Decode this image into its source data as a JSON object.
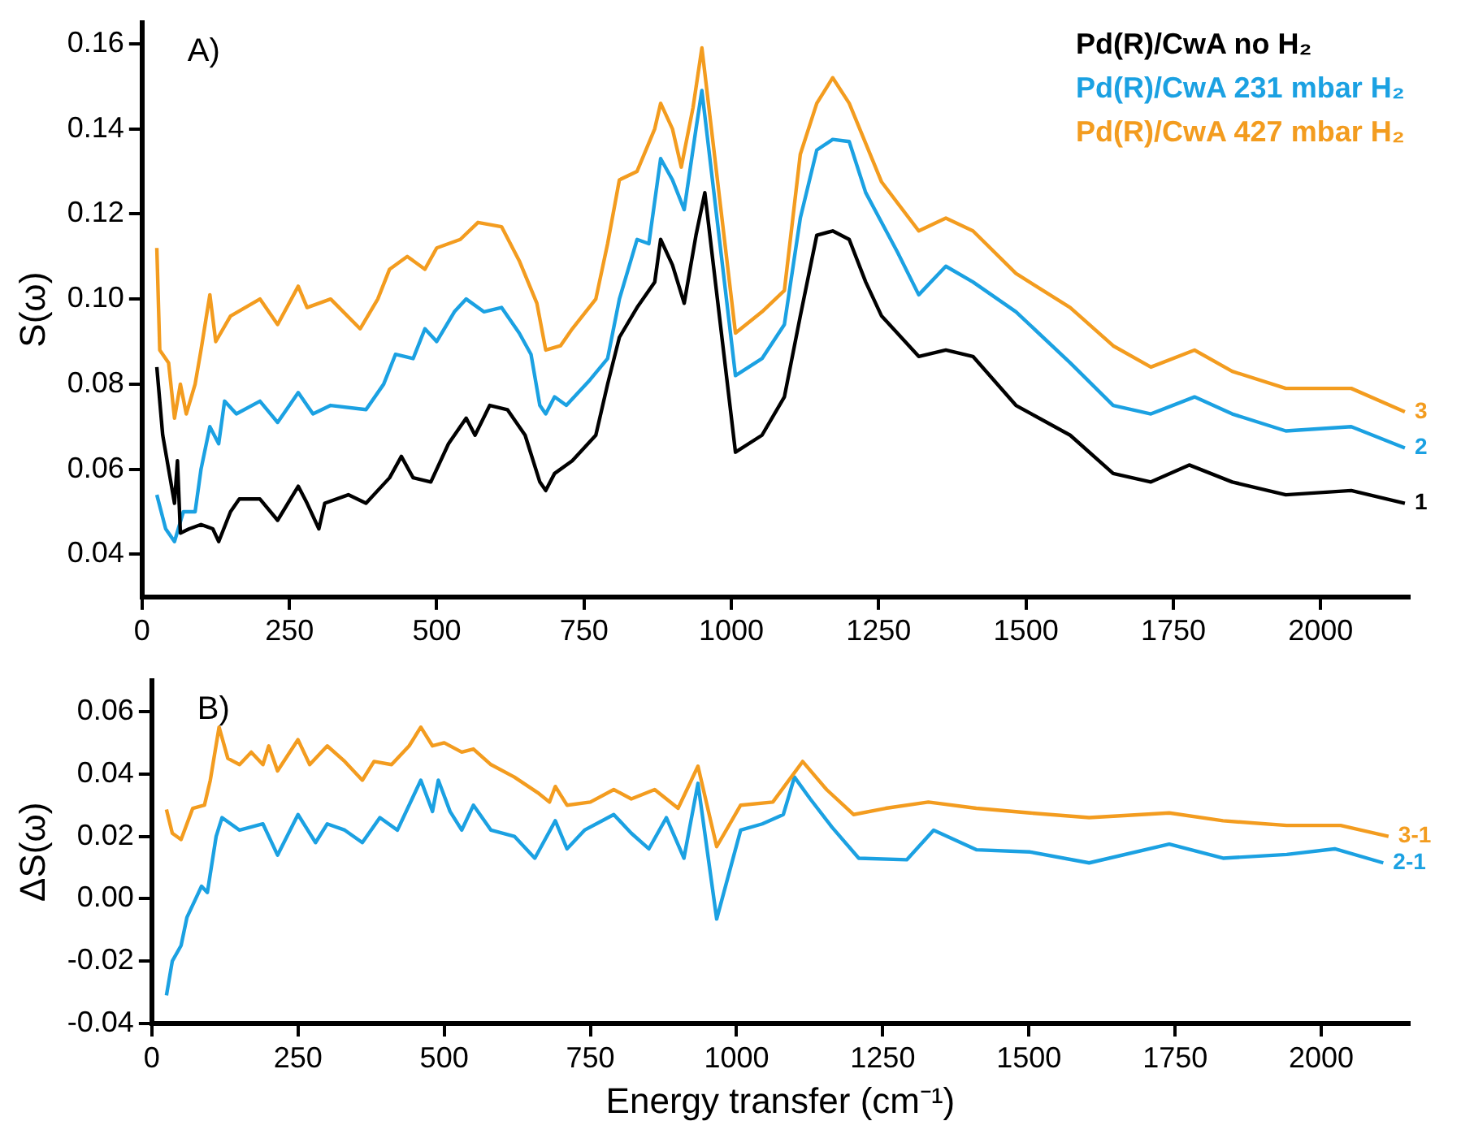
{
  "chart_data": [
    {
      "type": "line",
      "ylabel": "S(ω)",
      "xlim": [
        0,
        2150
      ],
      "ylim": [
        0.03,
        0.165
      ],
      "xticks": [
        0,
        250,
        500,
        750,
        1000,
        1250,
        1500,
        1750,
        2000
      ],
      "yticks": [
        0.04,
        0.06,
        0.08,
        {
          "value": 0.1,
          "label": "0.10"
        },
        0.12,
        0.14,
        0.16
      ],
      "grid": false,
      "legend": "top right",
      "marker": "none",
      "line_style": "solid",
      "annotations": [
        "A)",
        "3",
        "2",
        "1"
      ],
      "series": [
        {
          "name": "Pd(R)/CwA no H₂",
          "color": "#000000",
          "x": [
            25,
            35,
            45,
            55,
            60,
            65,
            80,
            100,
            120,
            130,
            150,
            165,
            200,
            230,
            265,
            280,
            300,
            310,
            350,
            380,
            420,
            440,
            460,
            490,
            520,
            550,
            565,
            590,
            620,
            650,
            675,
            685,
            700,
            730,
            770,
            790,
            810,
            840,
            870,
            880,
            900,
            920,
            940,
            955,
            1007,
            1052,
            1090,
            1117,
            1145,
            1172,
            1200,
            1228,
            1255,
            1318,
            1364,
            1410,
            1483,
            1575,
            1648,
            1712,
            1777,
            1850,
            1941,
            2052,
            2143
          ],
          "values": [
            0.084,
            0.068,
            0.06,
            0.052,
            0.062,
            0.045,
            0.046,
            0.047,
            0.046,
            0.043,
            0.05,
            0.053,
            0.053,
            0.048,
            0.056,
            0.052,
            0.046,
            0.052,
            0.054,
            0.052,
            0.058,
            0.063,
            0.058,
            0.057,
            0.066,
            0.072,
            0.068,
            0.075,
            0.074,
            0.068,
            0.057,
            0.055,
            0.059,
            0.062,
            0.068,
            0.08,
            0.091,
            0.098,
            0.104,
            0.114,
            0.108,
            0.099,
            0.115,
            0.125,
            0.064,
            0.068,
            0.077,
            0.096,
            0.115,
            0.116,
            0.114,
            0.104,
            0.096,
            0.0865,
            0.088,
            0.0865,
            0.075,
            0.068,
            0.059,
            0.057,
            0.061,
            0.057,
            0.054,
            0.055,
            0.052
          ]
        },
        {
          "name": "Pd(R)/CwA 231 mbar H₂",
          "color": "#1ba1e2",
          "x": [
            25,
            40,
            55,
            70,
            90,
            100,
            115,
            130,
            140,
            160,
            200,
            230,
            265,
            290,
            320,
            380,
            410,
            430,
            460,
            480,
            500,
            530,
            550,
            580,
            610,
            640,
            660,
            675,
            685,
            700,
            720,
            760,
            790,
            810,
            840,
            860,
            880,
            900,
            920,
            940,
            950,
            1007,
            1052,
            1090,
            1117,
            1145,
            1172,
            1200,
            1228,
            1282,
            1318,
            1364,
            1410,
            1483,
            1575,
            1648,
            1712,
            1786,
            1850,
            1941,
            2052,
            2143
          ],
          "values": [
            0.054,
            0.046,
            0.043,
            0.05,
            0.05,
            0.06,
            0.07,
            0.066,
            0.076,
            0.073,
            0.076,
            0.071,
            0.078,
            0.073,
            0.075,
            0.074,
            0.08,
            0.087,
            0.086,
            0.093,
            0.09,
            0.097,
            0.1,
            0.097,
            0.098,
            0.092,
            0.087,
            0.075,
            0.073,
            0.077,
            0.075,
            0.081,
            0.086,
            0.1,
            0.114,
            0.113,
            0.133,
            0.128,
            0.121,
            0.14,
            0.149,
            0.082,
            0.086,
            0.094,
            0.119,
            0.135,
            0.1375,
            0.137,
            0.125,
            0.111,
            0.101,
            0.1077,
            0.104,
            0.097,
            0.085,
            0.075,
            0.073,
            0.077,
            0.073,
            0.069,
            0.07,
            0.065
          ]
        },
        {
          "name": "Pd(R)/CwA 427 mbar H₂",
          "color": "#f39c1f",
          "x": [
            25,
            30,
            45,
            55,
            65,
            75,
            90,
            100,
            115,
            125,
            150,
            200,
            230,
            265,
            280,
            320,
            370,
            400,
            420,
            450,
            480,
            500,
            540,
            570,
            610,
            640,
            670,
            685,
            710,
            730,
            770,
            790,
            810,
            840,
            870,
            880,
            900,
            915,
            935,
            950,
            1007,
            1052,
            1090,
            1117,
            1145,
            1172,
            1200,
            1255,
            1318,
            1364,
            1410,
            1483,
            1575,
            1648,
            1712,
            1786,
            1850,
            1941,
            2052,
            2143
          ],
          "values": [
            0.112,
            0.088,
            0.085,
            0.072,
            0.08,
            0.073,
            0.08,
            0.088,
            0.101,
            0.09,
            0.096,
            0.1,
            0.094,
            0.103,
            0.098,
            0.1,
            0.093,
            0.1,
            0.107,
            0.11,
            0.107,
            0.112,
            0.114,
            0.118,
            0.117,
            0.109,
            0.099,
            0.088,
            0.089,
            0.093,
            0.1,
            0.113,
            0.128,
            0.13,
            0.14,
            0.146,
            0.14,
            0.131,
            0.145,
            0.159,
            0.092,
            0.097,
            0.102,
            0.134,
            0.146,
            0.152,
            0.146,
            0.1275,
            0.116,
            0.119,
            0.116,
            0.106,
            0.098,
            0.089,
            0.084,
            0.088,
            0.083,
            0.079,
            0.079,
            0.0735
          ]
        }
      ]
    },
    {
      "type": "line",
      "xlabel": "Energy transfer (cm⁻¹)",
      "ylabel": "ΔS(ω)",
      "xlim": [
        0,
        2150
      ],
      "ylim": [
        -0.04,
        0.07
      ],
      "xticks": [
        0,
        250,
        500,
        750,
        1000,
        1250,
        1500,
        1750,
        2000
      ],
      "yticks": [
        -0.04,
        -0.02,
        {
          "value": 0,
          "label": "0.00"
        },
        0.02,
        0.04,
        0.06
      ],
      "grid": false,
      "marker": "none",
      "line_style": "solid",
      "annotations": [
        "B)"
      ],
      "series": [
        {
          "name": "3-1",
          "color": "#f39c1f",
          "x": [
            25,
            35,
            50,
            70,
            90,
            100,
            115,
            130,
            150,
            170,
            190,
            200,
            215,
            250,
            270,
            300,
            330,
            360,
            380,
            410,
            440,
            460,
            480,
            500,
            530,
            550,
            580,
            620,
            660,
            680,
            690,
            710,
            750,
            790,
            820,
            860,
            900,
            934,
            966,
            1007,
            1062,
            1113,
            1154,
            1200,
            1255,
            1328,
            1410,
            1502,
            1603,
            1740,
            1832,
            1941,
            2033,
            2115
          ],
          "values": [
            0.0286,
            0.021,
            0.019,
            0.029,
            0.03,
            0.038,
            0.055,
            0.045,
            0.043,
            0.047,
            0.043,
            0.049,
            0.041,
            0.051,
            0.043,
            0.049,
            0.044,
            0.038,
            0.044,
            0.043,
            0.049,
            0.055,
            0.049,
            0.05,
            0.047,
            0.048,
            0.043,
            0.039,
            0.034,
            0.031,
            0.036,
            0.03,
            0.031,
            0.035,
            0.032,
            0.035,
            0.029,
            0.0425,
            0.0167,
            0.03,
            0.031,
            0.044,
            0.035,
            0.027,
            0.029,
            0.031,
            0.029,
            0.0275,
            0.026,
            0.0275,
            0.025,
            0.0235,
            0.0235,
            0.02
          ]
        },
        {
          "name": "2-1",
          "color": "#1ba1e2",
          "x": [
            25,
            35,
            50,
            60,
            75,
            85,
            95,
            110,
            120,
            150,
            190,
            215,
            250,
            280,
            300,
            330,
            360,
            390,
            420,
            460,
            480,
            490,
            510,
            530,
            550,
            580,
            620,
            655,
            690,
            710,
            740,
            790,
            820,
            850,
            880,
            910,
            934,
            966,
            1007,
            1044,
            1080,
            1099,
            1126,
            1163,
            1209,
            1291,
            1337,
            1410,
            1502,
            1603,
            1740,
            1832,
            1941,
            2023,
            2106
          ],
          "values": [
            -0.031,
            -0.02,
            -0.015,
            -0.006,
            0,
            0.004,
            0.002,
            0.02,
            0.026,
            0.022,
            0.024,
            0.014,
            0.027,
            0.018,
            0.024,
            0.022,
            0.018,
            0.026,
            0.022,
            0.038,
            0.028,
            0.038,
            0.028,
            0.022,
            0.03,
            0.022,
            0.02,
            0.013,
            0.025,
            0.016,
            0.022,
            0.027,
            0.021,
            0.016,
            0.026,
            0.013,
            0.037,
            -0.0065,
            0.022,
            0.024,
            0.027,
            0.039,
            0.032,
            0.023,
            0.013,
            0.0125,
            0.022,
            0.0157,
            0.015,
            0.0115,
            0.0175,
            0.013,
            0.0142,
            0.016,
            0.0115
          ]
        }
      ]
    }
  ]
}
